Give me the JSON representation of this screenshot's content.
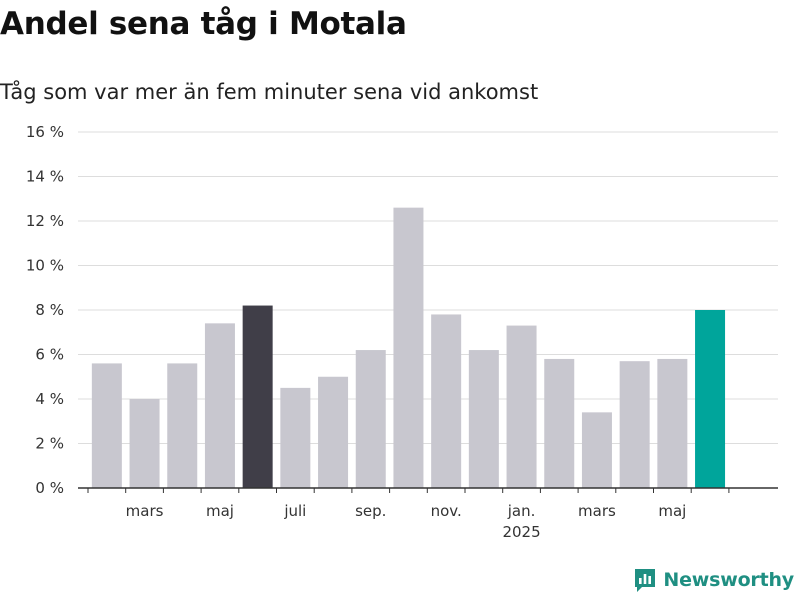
{
  "header": {
    "title": "Andel sena tåg i Motala",
    "subtitle": "Tåg som var mer än fem minuter sena vid ankomst"
  },
  "brand": {
    "name": "Newsworthy",
    "icon": "newsworthy-logo-icon"
  },
  "colors": {
    "bar_default": "#c8c7cf",
    "bar_highlight_dark": "#403e48",
    "bar_highlight_accent": "#00a59b",
    "gridline": "#dddddd",
    "axis": "#333333"
  },
  "chart_data": {
    "type": "bar",
    "categories": [
      "2024-02",
      "2024-03",
      "2024-04",
      "2024-05",
      "2024-06",
      "2024-07",
      "2024-08",
      "2024-09",
      "2024-10",
      "2024-11",
      "2024-12",
      "2025-01",
      "2025-02",
      "2025-03",
      "2025-04",
      "2025-05",
      "2025-06"
    ],
    "values": [
      5.6,
      4.0,
      5.6,
      7.4,
      8.2,
      4.5,
      5.0,
      6.2,
      12.6,
      7.8,
      6.2,
      7.3,
      5.8,
      3.4,
      5.7,
      5.8,
      8.0
    ],
    "highlight": {
      "2024-06": "dark",
      "2025-06": "accent"
    },
    "x_tick_labels": [
      {
        "category": "2024-03",
        "label": "mars"
      },
      {
        "category": "2024-05",
        "label": "maj"
      },
      {
        "category": "2024-07",
        "label": "juli"
      },
      {
        "category": "2024-09",
        "label": "sep."
      },
      {
        "category": "2024-11",
        "label": "nov."
      },
      {
        "category": "2025-01",
        "label": "jan.",
        "sublabel": "2025"
      },
      {
        "category": "2025-03",
        "label": "mars"
      },
      {
        "category": "2025-05",
        "label": "maj"
      }
    ],
    "y_ticks": [
      {
        "value": 0,
        "label": "0 %"
      },
      {
        "value": 2,
        "label": "2 %"
      },
      {
        "value": 4,
        "label": "4 %"
      },
      {
        "value": 6,
        "label": "6 %"
      },
      {
        "value": 8,
        "label": "8 %"
      },
      {
        "value": 10,
        "label": "10 %"
      },
      {
        "value": 12,
        "label": "12 %"
      },
      {
        "value": 14,
        "label": "14 %"
      },
      {
        "value": 16,
        "label": "16 %"
      }
    ],
    "ylim": [
      0,
      16
    ],
    "grid": true,
    "legend": "none",
    "xlabel": "",
    "ylabel": ""
  }
}
